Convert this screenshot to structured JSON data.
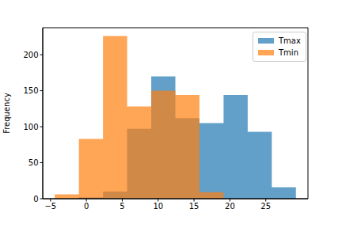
{
  "chart_data": {
    "type": "histogram",
    "ylabel": "Frequency",
    "bins": [
      -4.4,
      -1.04,
      2.32,
      5.68,
      9.04,
      12.4,
      15.76,
      19.12,
      22.48,
      25.84,
      29.2
    ],
    "series": [
      {
        "name": "Tmax",
        "color": "#1f77b4",
        "values": [
          0,
          2,
          10,
          97,
          170,
          112,
          105,
          144,
          93,
          16
        ]
      },
      {
        "name": "Tmin",
        "color": "#ff7f0e",
        "values": [
          6,
          83,
          226,
          128,
          150,
          144,
          9,
          0,
          0,
          0
        ]
      }
    ],
    "xlim": [
      -6.08,
      30.88
    ],
    "ylim": [
      0,
      237.5
    ],
    "xticks": [
      {
        "value": -5,
        "label": "−5"
      },
      0,
      5,
      10,
      15,
      20,
      25
    ],
    "yticks": [
      0,
      50,
      100,
      150,
      200
    ],
    "legend": "upper right",
    "grid": false
  }
}
